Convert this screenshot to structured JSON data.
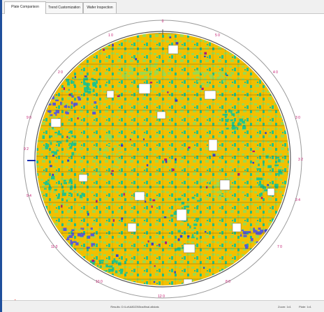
{
  "tabs": [
    {
      "label": "Plate Comparison"
    },
    {
      "label": "Trend Customization"
    },
    {
      "label": "Wafer Inspection"
    }
  ],
  "wafer": {
    "top_label": "0",
    "bottom_label": "12 0",
    "left_labels": [
      "9 0",
      "9 2",
      "9 4"
    ],
    "right_labels": [
      "3 0",
      "3 2",
      "3 4"
    ],
    "rim_labels": [
      "1 0",
      "2 0",
      "4 0",
      "5 0",
      "7 0",
      "8 0",
      "10 0",
      "11 0"
    ]
  },
  "status": {
    "center_text": "Results: D:\\Lot\\A8023\\Bradfinal.allstats",
    "right_1": "Zoom: 1x1",
    "right_2": "Plate: 1x1"
  },
  "colors": {
    "wafer_bg": "#ffffff",
    "high": "#f2c000",
    "mid": "#9fd94a",
    "low": "#21c48a",
    "very_low": "#5a5ad4",
    "spot": "#b01a7a",
    "arrow": "#e02010",
    "labels": "#c0106a"
  },
  "icons": {
    "arrow": "right-arrow-icon"
  }
}
